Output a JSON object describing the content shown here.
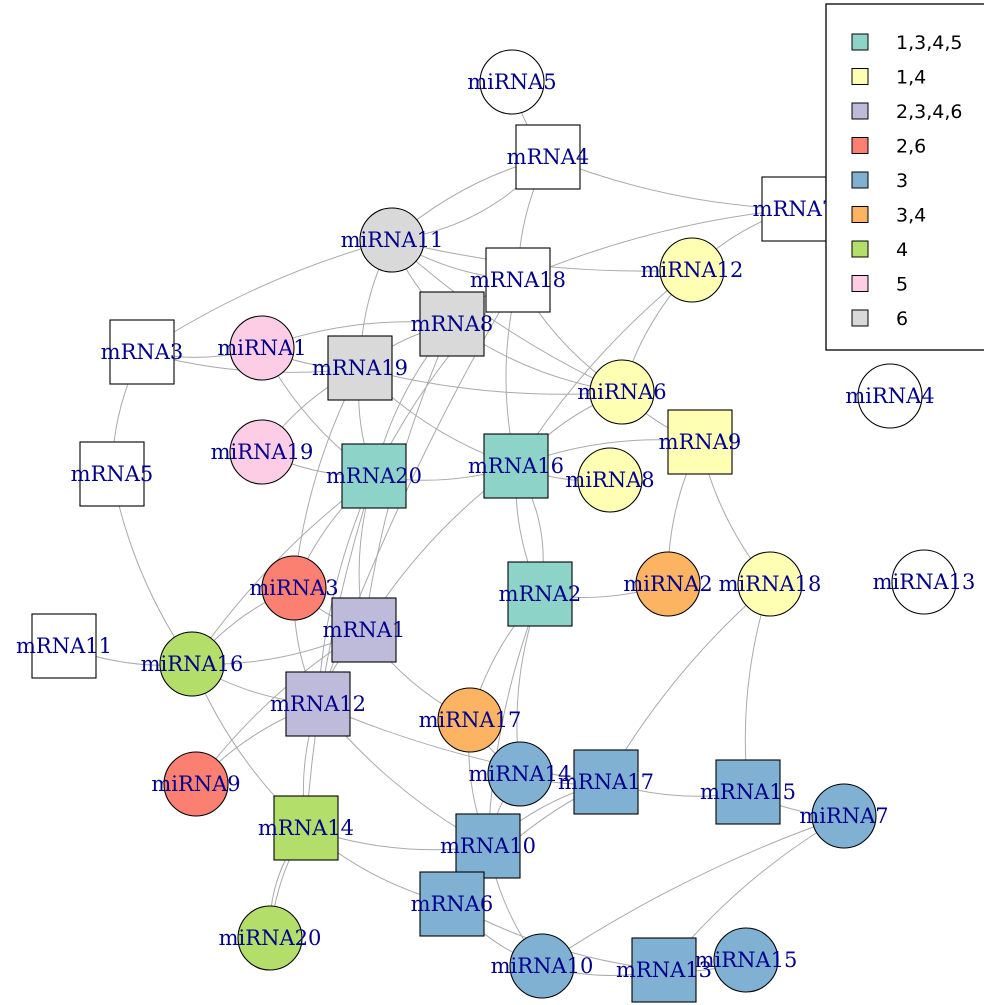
{
  "network": {
    "colors": {
      "1,3,4,5": "#8DD3C7",
      "1,4": "#FFFFB3",
      "2,3,4,6": "#BEBADA",
      "2,6": "#FB8072",
      "3": "#80B1D3",
      "3,4": "#FDB462",
      "4": "#B3DE69",
      "5": "#FCCDE5",
      "6": "#D9D9D9",
      "none": "#FFFFFF"
    },
    "edge_color": "#AAAAAA",
    "nodes": [
      {
        "id": "miRNA5",
        "shape": "circle",
        "group": "none"
      },
      {
        "id": "mRNA4",
        "shape": "square",
        "group": "none"
      },
      {
        "id": "mRNA7",
        "shape": "square",
        "group": "none"
      },
      {
        "id": "miRNA11",
        "shape": "circle",
        "group": "6"
      },
      {
        "id": "mRNA18",
        "shape": "square",
        "group": "none"
      },
      {
        "id": "miRNA12",
        "shape": "circle",
        "group": "1,4"
      },
      {
        "id": "mRNA8",
        "shape": "square",
        "group": "6"
      },
      {
        "id": "mRNA3",
        "shape": "square",
        "group": "none"
      },
      {
        "id": "miRNA1",
        "shape": "circle",
        "group": "5"
      },
      {
        "id": "mRNA19",
        "shape": "square",
        "group": "6"
      },
      {
        "id": "miRNA6",
        "shape": "circle",
        "group": "1,4"
      },
      {
        "id": "miRNA4",
        "shape": "circle",
        "group": "none"
      },
      {
        "id": "mRNA9",
        "shape": "square",
        "group": "1,4"
      },
      {
        "id": "miRNA19",
        "shape": "circle",
        "group": "5"
      },
      {
        "id": "mRNA5",
        "shape": "square",
        "group": "none"
      },
      {
        "id": "mRNA20",
        "shape": "square",
        "group": "1,3,4,5"
      },
      {
        "id": "mRNA16",
        "shape": "square",
        "group": "1,3,4,5"
      },
      {
        "id": "miRNA8",
        "shape": "circle",
        "group": "1,4"
      },
      {
        "id": "miRNA3",
        "shape": "circle",
        "group": "2,6"
      },
      {
        "id": "mRNA2",
        "shape": "square",
        "group": "1,3,4,5"
      },
      {
        "id": "miRNA2",
        "shape": "circle",
        "group": "3,4"
      },
      {
        "id": "miRNA18",
        "shape": "circle",
        "group": "1,4"
      },
      {
        "id": "miRNA13",
        "shape": "circle",
        "group": "none"
      },
      {
        "id": "mRNA11",
        "shape": "square",
        "group": "none"
      },
      {
        "id": "miRNA16",
        "shape": "circle",
        "group": "4"
      },
      {
        "id": "mRNA1",
        "shape": "square",
        "group": "2,3,4,6"
      },
      {
        "id": "mRNA12",
        "shape": "square",
        "group": "2,3,4,6"
      },
      {
        "id": "miRNA17",
        "shape": "circle",
        "group": "3,4"
      },
      {
        "id": "miRNA9",
        "shape": "circle",
        "group": "2,6"
      },
      {
        "id": "miRNA14",
        "shape": "circle",
        "group": "3"
      },
      {
        "id": "mRNA17",
        "shape": "square",
        "group": "3"
      },
      {
        "id": "mRNA15",
        "shape": "square",
        "group": "3"
      },
      {
        "id": "miRNA7",
        "shape": "circle",
        "group": "3"
      },
      {
        "id": "mRNA14",
        "shape": "square",
        "group": "4"
      },
      {
        "id": "mRNA10",
        "shape": "square",
        "group": "3"
      },
      {
        "id": "mRNA6",
        "shape": "square",
        "group": "3"
      },
      {
        "id": "miRNA20",
        "shape": "circle",
        "group": "4"
      },
      {
        "id": "miRNA10",
        "shape": "circle",
        "group": "3"
      },
      {
        "id": "mRNA13",
        "shape": "square",
        "group": "3"
      },
      {
        "id": "miRNA15",
        "shape": "circle",
        "group": "3"
      }
    ],
    "edges": [
      [
        "miRNA5",
        "mRNA4"
      ],
      [
        "mRNA4",
        "mRNA7"
      ],
      [
        "mRNA4",
        "miRNA11"
      ],
      [
        "mRNA4",
        "mRNA18"
      ],
      [
        "mRNA4",
        "miRNA11"
      ],
      [
        "mRNA7",
        "miRNA12"
      ],
      [
        "mRNA7",
        "mRNA18"
      ],
      [
        "miRNA11",
        "mRNA18"
      ],
      [
        "miRNA11",
        "miRNA12"
      ],
      [
        "miRNA11",
        "mRNA8"
      ],
      [
        "miRNA11",
        "mRNA19"
      ],
      [
        "miRNA11",
        "mRNA3"
      ],
      [
        "miRNA11",
        "miRNA6"
      ],
      [
        "mRNA18",
        "mRNA8"
      ],
      [
        "mRNA18",
        "miRNA6"
      ],
      [
        "mRNA18",
        "mRNA16"
      ],
      [
        "mRNA18",
        "mRNA20"
      ],
      [
        "mRNA18",
        "mRNA12"
      ],
      [
        "miRNA12",
        "mRNA16"
      ],
      [
        "miRNA12",
        "miRNA6"
      ],
      [
        "mRNA8",
        "miRNA1"
      ],
      [
        "mRNA8",
        "mRNA19"
      ],
      [
        "mRNA8",
        "miRNA6"
      ],
      [
        "mRNA8",
        "mRNA20"
      ],
      [
        "mRNA8",
        "mRNA1"
      ],
      [
        "mRNA3",
        "miRNA1"
      ],
      [
        "mRNA3",
        "mRNA5"
      ],
      [
        "mRNA3",
        "mRNA19"
      ],
      [
        "miRNA1",
        "mRNA19"
      ],
      [
        "miRNA1",
        "mRNA20"
      ],
      [
        "mRNA19",
        "mRNA20"
      ],
      [
        "mRNA19",
        "miRNA19"
      ],
      [
        "mRNA19",
        "miRNA3"
      ],
      [
        "mRNA19",
        "mRNA16"
      ],
      [
        "mRNA19",
        "miRNA6"
      ],
      [
        "miRNA6",
        "mRNA9"
      ],
      [
        "miRNA6",
        "mRNA16"
      ],
      [
        "mRNA9",
        "mRNA16"
      ],
      [
        "mRNA9",
        "miRNA2"
      ],
      [
        "mRNA9",
        "miRNA18"
      ],
      [
        "miRNA19",
        "mRNA20"
      ],
      [
        "mRNA5",
        "miRNA16"
      ],
      [
        "mRNA20",
        "mRNA16"
      ],
      [
        "mRNA20",
        "miRNA3"
      ],
      [
        "mRNA20",
        "mRNA1"
      ],
      [
        "mRNA20",
        "mRNA12"
      ],
      [
        "mRNA20",
        "miRNA16"
      ],
      [
        "mRNA20",
        "mRNA14"
      ],
      [
        "mRNA16",
        "miRNA8"
      ],
      [
        "mRNA16",
        "mRNA2"
      ],
      [
        "mRNA16",
        "mRNA2"
      ],
      [
        "mRNA16",
        "mRNA1"
      ],
      [
        "miRNA3",
        "mRNA1"
      ],
      [
        "miRNA3",
        "mRNA12"
      ],
      [
        "miRNA3",
        "miRNA16"
      ],
      [
        "mRNA2",
        "miRNA2"
      ],
      [
        "mRNA2",
        "miRNA17"
      ],
      [
        "mRNA2",
        "miRNA14"
      ],
      [
        "mRNA2",
        "mRNA10"
      ],
      [
        "miRNA18",
        "mRNA17"
      ],
      [
        "miRNA18",
        "mRNA15"
      ],
      [
        "mRNA11",
        "miRNA16"
      ],
      [
        "miRNA16",
        "mRNA1"
      ],
      [
        "miRNA16",
        "mRNA12"
      ],
      [
        "miRNA16",
        "mRNA14"
      ],
      [
        "mRNA1",
        "mRNA12"
      ],
      [
        "mRNA1",
        "miRNA17"
      ],
      [
        "mRNA1",
        "miRNA9"
      ],
      [
        "mRNA12",
        "miRNA9"
      ],
      [
        "mRNA12",
        "mRNA14"
      ],
      [
        "mRNA12",
        "mRNA10"
      ],
      [
        "mRNA12",
        "mRNA17"
      ],
      [
        "miRNA17",
        "miRNA14"
      ],
      [
        "miRNA17",
        "mRNA10"
      ],
      [
        "miRNA14",
        "mRNA17"
      ],
      [
        "miRNA14",
        "mRNA10"
      ],
      [
        "mRNA17",
        "mRNA15"
      ],
      [
        "mRNA17",
        "mRNA10"
      ],
      [
        "mRNA17",
        "mRNA6"
      ],
      [
        "mRNA15",
        "miRNA7"
      ],
      [
        "miRNA7",
        "mRNA13"
      ],
      [
        "miRNA7",
        "miRNA10"
      ],
      [
        "mRNA14",
        "miRNA20"
      ],
      [
        "mRNA14",
        "mRNA10"
      ],
      [
        "mRNA14",
        "mRNA6"
      ],
      [
        "mRNA10",
        "mRNA6"
      ],
      [
        "mRNA10",
        "miRNA10"
      ],
      [
        "mRNA6",
        "miRNA10"
      ],
      [
        "mRNA6",
        "mRNA13"
      ],
      [
        "miRNA10",
        "mRNA13"
      ],
      [
        "mRNA13",
        "miRNA15"
      ],
      [
        "miRNA20",
        "mRNA14"
      ]
    ]
  },
  "legend": {
    "entries": [
      {
        "label": "1,3,4,5",
        "color": "#8DD3C7"
      },
      {
        "label": "1,4",
        "color": "#FFFFB3"
      },
      {
        "label": "2,3,4,6",
        "color": "#BEBADA"
      },
      {
        "label": "2,6",
        "color": "#FB8072"
      },
      {
        "label": "3",
        "color": "#80B1D3"
      },
      {
        "label": "3,4",
        "color": "#FDB462"
      },
      {
        "label": "4",
        "color": "#B3DE69"
      },
      {
        "label": "5",
        "color": "#FCCDE5"
      },
      {
        "label": "6",
        "color": "#D9D9D9"
      }
    ]
  }
}
